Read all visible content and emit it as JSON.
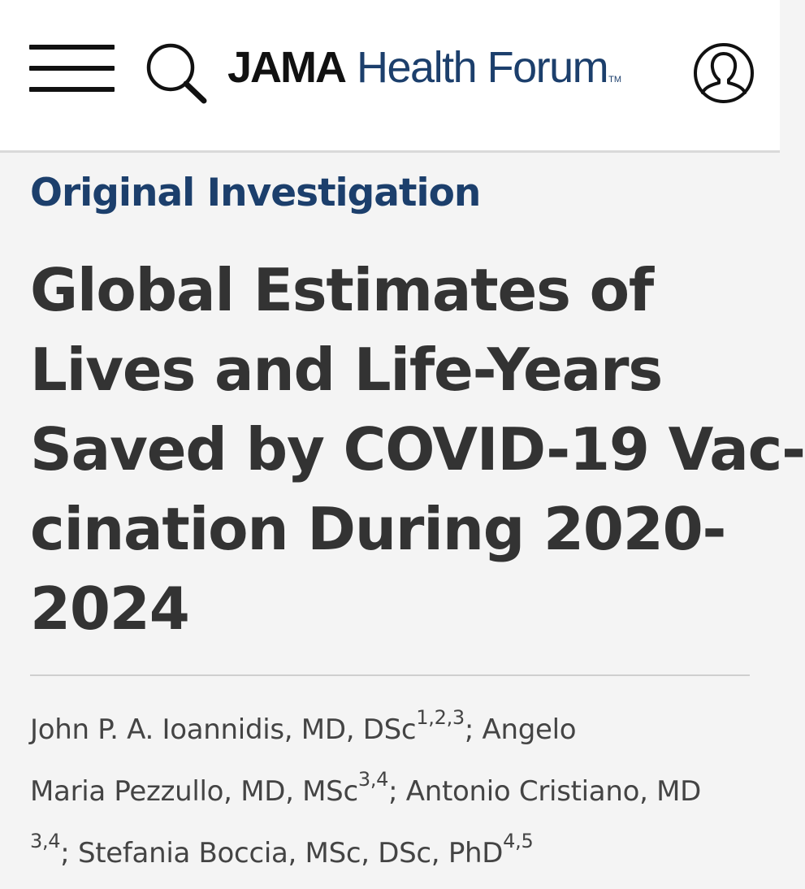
{
  "header": {
    "logo_primary": "JAMA",
    "logo_secondary": "Health Forum",
    "logo_tm": "TM",
    "icons": {
      "menu": "hamburger-menu-icon",
      "search": "search-icon",
      "account": "user-account-icon"
    }
  },
  "article": {
    "type": "Original Investigation",
    "title_lines": [
      "Global Estimates of",
      "Lives and Life-Years",
      "Saved by COVID-19 Vac-",
      "cination During 2020-",
      "2024"
    ],
    "authors": [
      {
        "name": "John P. A. Ioannidis, MD, DSc",
        "affiliations": "1,2,3"
      },
      {
        "name": "Angelo Maria Pezzullo, MD, MSc",
        "affiliations": "3,4"
      },
      {
        "name": "Antonio Cristiano, MD",
        "affiliations": "3,4"
      },
      {
        "name": "Stefania Boccia, MSc, DSc, PhD",
        "affiliations": "4,5"
      }
    ],
    "author_lines": {
      "l1_a": "John P. A. Ioannidis, MD, DSc",
      "l1_sup": "1,2,3",
      "l1_b": "; Angelo",
      "l2_a": "Maria Pezzullo, MD, MSc",
      "l2_sup": "3,4",
      "l2_b": "; Antonio Cristiano, MD",
      "l3_sup1": "3,4",
      "l3_a": "; Stefania Boccia, MSc, DSc, PhD",
      "l3_sup2": "4,5"
    }
  },
  "colors": {
    "brand_blue": "#1c3f6c",
    "title_text": "#333333",
    "body_text": "#444444",
    "page_bg": "#f4f4f4",
    "header_bg": "#ffffff"
  }
}
